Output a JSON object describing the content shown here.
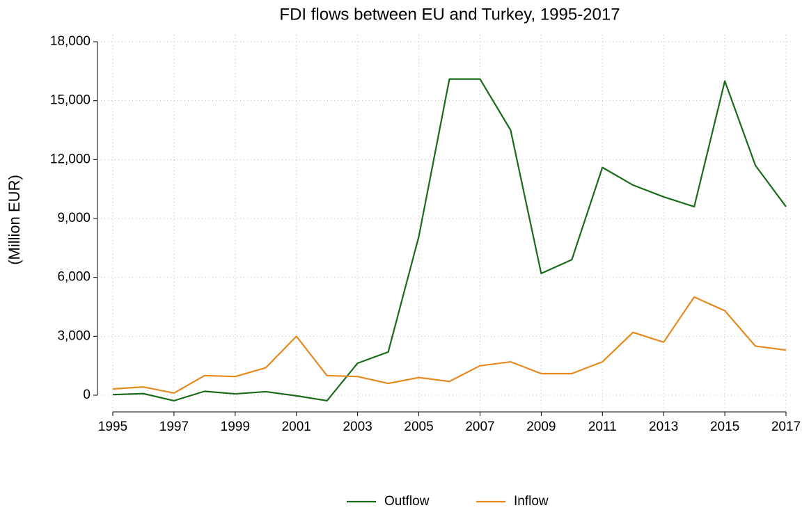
{
  "chart_data": {
    "type": "line",
    "title": "FDI flows between EU and Turkey, 1995-2017",
    "y_label": "(Million EUR)",
    "x": [
      1995,
      1996,
      1997,
      1998,
      1999,
      2000,
      2001,
      2002,
      2003,
      2004,
      2005,
      2006,
      2007,
      2008,
      2009,
      2010,
      2011,
      2012,
      2013,
      2014,
      2015,
      2016,
      2017
    ],
    "series": [
      {
        "name": "Outflow",
        "color": "#1a6b1a",
        "values": [
          30,
          80,
          -280,
          200,
          70,
          180,
          -30,
          -280,
          1630,
          2200,
          8080,
          16100,
          16100,
          13500,
          6200,
          6900,
          11600,
          10700,
          10100,
          9600,
          16000,
          11700,
          9600
        ]
      },
      {
        "name": "Inflow",
        "color": "#e58a1f",
        "values": [
          320,
          420,
          110,
          1000,
          950,
          1400,
          3000,
          1000,
          950,
          600,
          900,
          700,
          1500,
          1700,
          1100,
          1100,
          1700,
          3200,
          2700,
          5000,
          4300,
          2500,
          2300
        ]
      }
    ],
    "xlim": [
      1995,
      2017
    ],
    "xticks": [
      1995,
      1997,
      1999,
      2001,
      2003,
      2005,
      2007,
      2009,
      2011,
      2013,
      2015,
      2017
    ],
    "ylim": [
      -850,
      18000
    ],
    "yticks": [
      0,
      {
        "value": 3000,
        "label": "3,000"
      },
      {
        "value": 6000,
        "label": "6,000"
      },
      {
        "value": 9000,
        "label": "9,000"
      },
      {
        "value": 12000,
        "label": "12,000"
      },
      {
        "value": 15000,
        "label": "15,000"
      },
      {
        "value": 18000,
        "label": "18,000"
      }
    ],
    "grid": true,
    "legend": "bottom"
  }
}
